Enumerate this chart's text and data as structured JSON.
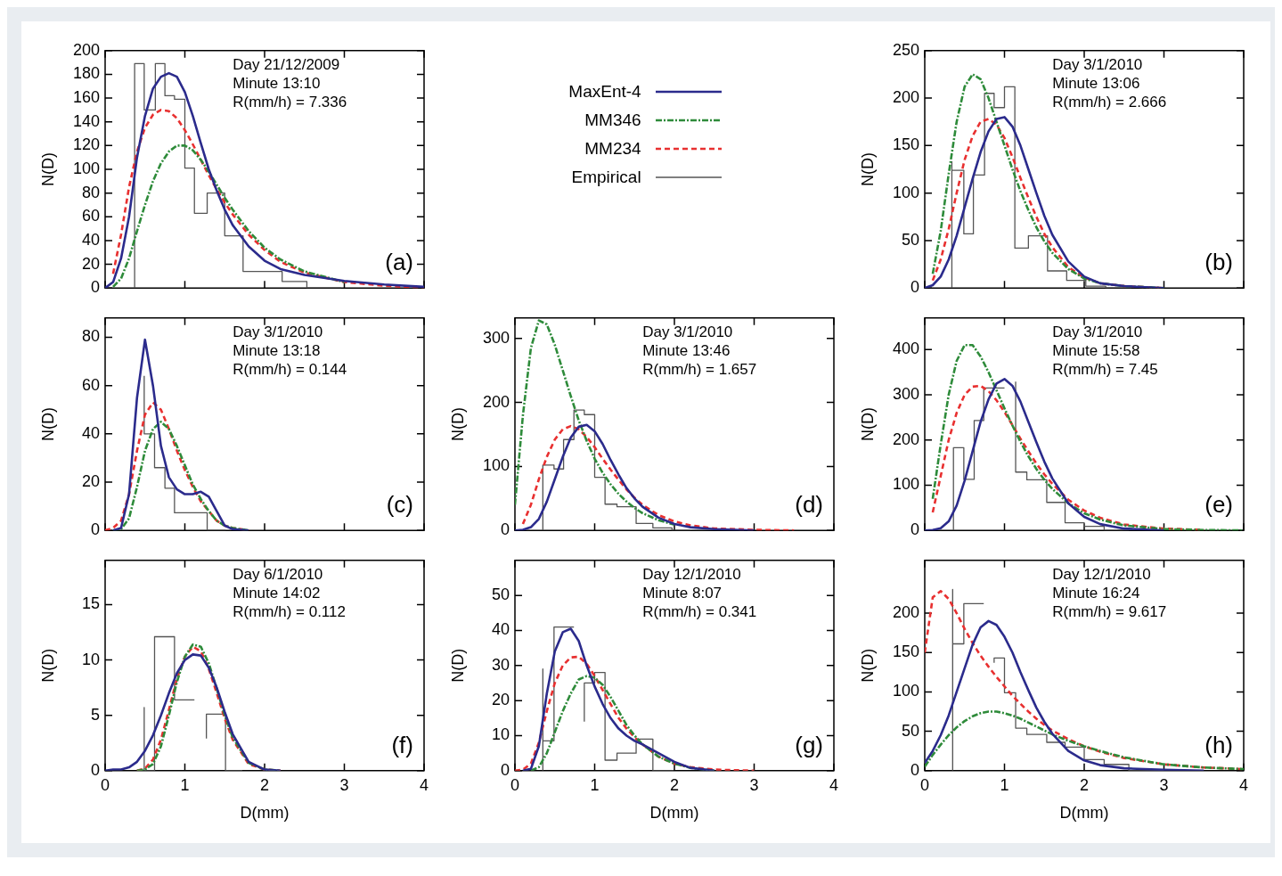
{
  "chart_data": [
    {
      "type": "line",
      "ylabel": "N(D)",
      "xlim": [
        0,
        4
      ],
      "xticks": [
        0,
        1,
        2,
        3,
        4
      ],
      "ylim": [
        0,
        200
      ],
      "yticks": [
        0,
        20,
        40,
        60,
        80,
        100,
        120,
        140,
        160,
        180,
        200
      ],
      "tick_labels": "y",
      "legend": "right",
      "annotations": [
        "Day 21/12/2009",
        "Minute 13:10",
        "R(mm/h) = 7.336",
        "(a)"
      ],
      "x": [
        0,
        0.1,
        0.2,
        0.3,
        0.4,
        0.5,
        0.6,
        0.7,
        0.8,
        0.9,
        1,
        1.1,
        1.2,
        1.3,
        1.4,
        1.5,
        1.6,
        1.8,
        2,
        2.2,
        2.5,
        3,
        3.5,
        4
      ],
      "series": [
        {
          "name": "MaxEnt-4",
          "color": "#2b2b8c",
          "line_style": "solid",
          "values": [
            0,
            5,
            25,
            60,
            110,
            145,
            168,
            178,
            181,
            178,
            165,
            145,
            122,
            100,
            82,
            66,
            53,
            35,
            23,
            16,
            11,
            6,
            3,
            1
          ]
        },
        {
          "name": "MM346",
          "color": "#2e8b3a",
          "line_style": "dashdot",
          "values": [
            null,
            1,
            8,
            25,
            48,
            70,
            90,
            105,
            115,
            120,
            120,
            116,
            108,
            98,
            87,
            76,
            66,
            48,
            34,
            24,
            14,
            5,
            null,
            null
          ]
        },
        {
          "name": "MM234",
          "color": "#e83030",
          "line_style": "dashed",
          "values": [
            null,
            12,
            45,
            85,
            115,
            135,
            146,
            150,
            149,
            143,
            133,
            121,
            108,
            95,
            83,
            72,
            62,
            45,
            32,
            22,
            13,
            5,
            2,
            0
          ]
        },
        {
          "name": "Empirical",
          "color": "#555555",
          "type": "step",
          "line_style": "solid",
          "x": [
            0.37,
            0.37,
            0.49,
            0.63,
            0.75,
            0.87,
            1,
            1.12,
            1.28,
            1.5,
            1.73,
            2.22,
            2.53,
            2.96
          ],
          "values": [
            0,
            137,
            189,
            150,
            189,
            162,
            159,
            101,
            63,
            80,
            44,
            14,
            5.5,
            0
          ]
        }
      ]
    },
    {
      "type": "line",
      "ylabel": "N(D)",
      "xlim": [
        0,
        4
      ],
      "xticks": [
        0,
        1,
        2,
        3,
        4
      ],
      "ylim": [
        0,
        250
      ],
      "yticks": [
        0,
        50,
        100,
        150,
        200,
        250
      ],
      "tick_labels": "y",
      "annotations": [
        "Day 3/1/2010",
        "Minute 13:06",
        "R(mm/h) = 2.666",
        "(b)"
      ],
      "x": [
        0,
        0.1,
        0.2,
        0.3,
        0.4,
        0.5,
        0.6,
        0.7,
        0.8,
        0.9,
        1,
        1.1,
        1.2,
        1.3,
        1.4,
        1.5,
        1.6,
        1.8,
        2,
        2.2,
        2.5,
        3
      ],
      "series": [
        {
          "color": "#2b2b8c",
          "line_style": "solid",
          "values": [
            0,
            3,
            12,
            30,
            55,
            85,
            115,
            143,
            165,
            178,
            180,
            170,
            150,
            125,
            100,
            76,
            56,
            28,
            12,
            5,
            2,
            0
          ]
        },
        {
          "color": "#2e8b3a",
          "line_style": "dashdot",
          "values": [
            null,
            15,
            60,
            120,
            175,
            212,
            225,
            220,
            200,
            175,
            150,
            125,
            102,
            82,
            64,
            49,
            37,
            20,
            10,
            5,
            2,
            0
          ]
        },
        {
          "color": "#e83030",
          "line_style": "dashed",
          "values": [
            null,
            8,
            30,
            62,
            100,
            135,
            160,
            175,
            178,
            172,
            158,
            138,
            116,
            95,
            75,
            57,
            43,
            22,
            11,
            5,
            2,
            0
          ]
        },
        {
          "color": "#555555",
          "type": "step",
          "line_style": "solid",
          "x": [
            0.34,
            0.34,
            0.49,
            0.61,
            0.75,
            0.87,
            1,
            1.13,
            1.3,
            1.54,
            1.78,
            2.02,
            2.27,
            2.59
          ],
          "values": [
            0,
            133,
            124,
            57,
            119,
            205,
            190,
            212,
            42,
            55,
            18,
            8,
            2,
            0
          ]
        }
      ]
    },
    {
      "type": "line",
      "ylabel": "N(D)",
      "xlim": [
        0,
        4
      ],
      "xticks": [
        0,
        1,
        2,
        3,
        4
      ],
      "ylim": [
        0,
        88
      ],
      "yticks": [
        0,
        20,
        40,
        60,
        80
      ],
      "tick_labels": "y",
      "annotations": [
        "Day 3/1/2010",
        "Minute 13:18",
        "R(mm/h) = 0.144",
        "(c)"
      ],
      "x": [
        0,
        0.1,
        0.2,
        0.3,
        0.4,
        0.5,
        0.6,
        0.7,
        0.8,
        0.9,
        1,
        1.1,
        1.2,
        1.3,
        1.4,
        1.5,
        1.6,
        1.8
      ],
      "series": [
        {
          "color": "#2b2b8c",
          "line_style": "solid",
          "values": [
            null,
            0,
            1,
            15,
            55,
            79,
            60,
            35,
            22,
            17,
            15,
            15,
            16,
            14,
            8,
            2,
            0.5,
            0
          ]
        },
        {
          "color": "#2e8b3a",
          "line_style": "dashdot",
          "values": [
            null,
            0,
            0.5,
            5,
            18,
            33,
            42,
            45,
            42,
            35,
            27,
            19,
            13,
            8,
            4,
            2,
            1,
            0
          ]
        },
        {
          "color": "#e83030",
          "line_style": "dashed",
          "values": [
            0,
            1,
            4,
            15,
            33,
            48,
            53,
            50,
            42,
            33,
            25,
            18,
            12,
            8,
            4,
            2,
            1,
            0
          ]
        },
        {
          "color": "#555555",
          "type": "step",
          "line_style": "solid",
          "x": [
            0.49,
            0.62,
            0.75,
            0.87,
            1.28,
            1.51
          ],
          "values": [
            64,
            40,
            26,
            17.5,
            7.3,
            0
          ]
        }
      ]
    },
    {
      "type": "line",
      "ylabel": "N(D)",
      "xlim": [
        0,
        4
      ],
      "xticks": [
        0,
        1,
        2,
        3,
        4
      ],
      "ylim": [
        0,
        332
      ],
      "yticks": [
        0,
        100,
        200,
        300
      ],
      "tick_labels": "y",
      "annotations": [
        "Day 3/1/2010",
        "Minute 13:46",
        "R(mm/h) = 1.657",
        "(d)"
      ],
      "x": [
        0,
        0.1,
        0.2,
        0.3,
        0.4,
        0.5,
        0.6,
        0.7,
        0.8,
        0.9,
        1,
        1.1,
        1.2,
        1.3,
        1.4,
        1.5,
        1.6,
        1.8,
        2,
        2.2,
        2.5,
        3,
        3.5
      ],
      "series": [
        {
          "color": "#2b2b8c",
          "line_style": "solid",
          "values": [
            0,
            1,
            5,
            18,
            45,
            80,
            115,
            145,
            162,
            165,
            155,
            135,
            110,
            87,
            66,
            50,
            37,
            20,
            10,
            5,
            2,
            0,
            null
          ]
        },
        {
          "color": "#2e8b3a",
          "line_style": "dashdot",
          "values": [
            40,
            180,
            285,
            328,
            322,
            290,
            250,
            210,
            172,
            140,
            112,
            90,
            72,
            57,
            45,
            35,
            27,
            16,
            9,
            null,
            null,
            null,
            null
          ]
        },
        {
          "color": "#e83030",
          "line_style": "dashed",
          "values": [
            null,
            10,
            40,
            80,
            115,
            142,
            158,
            163,
            158,
            146,
            130,
            112,
            95,
            79,
            64,
            51,
            40,
            24,
            14,
            8,
            3,
            1,
            0
          ]
        },
        {
          "color": "#555555",
          "type": "step",
          "line_style": "solid",
          "x": [
            0.35,
            0.35,
            0.49,
            0.61,
            0.74,
            0.87,
            1,
            1.13,
            1.28,
            1.52,
            1.73,
            1.97,
            2.2
          ],
          "values": [
            0,
            69,
            102,
            96,
            142,
            188,
            181,
            83,
            41,
            37,
            11,
            4,
            0
          ]
        }
      ]
    },
    {
      "type": "line",
      "ylabel": "N(D)",
      "xlim": [
        0,
        4
      ],
      "xticks": [
        0,
        1,
        2,
        3,
        4
      ],
      "ylim": [
        0,
        470
      ],
      "yticks": [
        0,
        100,
        200,
        300,
        400
      ],
      "tick_labels": "y",
      "annotations": [
        "Day 3/1/2010",
        "Minute 15:58",
        "R(mm/h) = 7.45",
        "(e)"
      ],
      "x": [
        0,
        0.1,
        0.2,
        0.3,
        0.4,
        0.5,
        0.6,
        0.7,
        0.8,
        0.9,
        1,
        1.1,
        1.2,
        1.3,
        1.4,
        1.5,
        1.6,
        1.8,
        2,
        2.2,
        2.5,
        3,
        3.5,
        4
      ],
      "series": [
        {
          "color": "#2b2b8c",
          "line_style": "solid",
          "values": [
            0,
            1,
            5,
            20,
            55,
            110,
            175,
            240,
            290,
            325,
            335,
            320,
            285,
            240,
            195,
            152,
            115,
            60,
            30,
            14,
            4,
            0,
            null,
            null
          ]
        },
        {
          "color": "#2e8b3a",
          "line_style": "dashdot",
          "values": [
            null,
            70,
            190,
            300,
            375,
            410,
            410,
            385,
            350,
            310,
            270,
            232,
            196,
            164,
            136,
            112,
            92,
            60,
            38,
            24,
            11,
            3,
            1,
            0
          ]
        },
        {
          "color": "#e83030",
          "line_style": "dashed",
          "values": [
            null,
            40,
            120,
            200,
            260,
            300,
            318,
            320,
            308,
            288,
            262,
            233,
            203,
            175,
            148,
            124,
            103,
            68,
            44,
            28,
            13,
            4,
            1,
            null
          ]
        },
        {
          "color": "#555555",
          "type": "step",
          "line_style": "solid",
          "x": [
            0.36,
            0.36,
            0.49,
            0.62,
            0.74,
            0.87,
            1
          ],
          "values": [
            0,
            117,
            183,
            113,
            243,
            315,
            315
          ]
        },
        {
          "color": "#555555",
          "type": "step",
          "line_style": "solid",
          "x": [
            1.14,
            1.28,
            1.53,
            1.76,
            2,
            2.25,
            2.56
          ],
          "values": [
            329,
            129,
            112,
            62,
            17,
            9,
            0
          ]
        }
      ]
    },
    {
      "type": "line",
      "xlabel": "D(mm)",
      "ylabel": "N(D)",
      "xlim": [
        0,
        4
      ],
      "xticks": [
        0,
        1,
        2,
        3,
        4
      ],
      "ylim": [
        0,
        19
      ],
      "yticks": [
        0,
        5,
        10,
        15
      ],
      "annotations": [
        "Day 6/1/2010",
        "Minute 14:02",
        "R(mm/h) = 0.112",
        "(f)"
      ],
      "x": [
        0,
        0.1,
        0.2,
        0.3,
        0.4,
        0.5,
        0.6,
        0.7,
        0.8,
        0.9,
        1,
        1.1,
        1.2,
        1.3,
        1.4,
        1.5,
        1.6,
        1.8,
        2,
        2.2
      ],
      "series": [
        {
          "color": "#2b2b8c",
          "line_style": "solid",
          "values": [
            0,
            0.1,
            0.1,
            0.3,
            0.8,
            1.8,
            3.2,
            5,
            7,
            8.8,
            10,
            10.5,
            10.4,
            9.3,
            7.5,
            5.3,
            3.3,
            0.8,
            0.1,
            0
          ]
        },
        {
          "color": "#2e8b3a",
          "line_style": "dashdot",
          "values": [
            null,
            null,
            null,
            null,
            0,
            0.1,
            0.6,
            2.2,
            5,
            8,
            10.3,
            11.4,
            11.2,
            9.7,
            7.4,
            5,
            3,
            0.7,
            0.1,
            0
          ]
        },
        {
          "color": "#e83030",
          "line_style": "dashed",
          "values": [
            null,
            null,
            null,
            null,
            0,
            0.2,
            1,
            2.8,
            5.5,
            8.3,
            10.3,
            11.2,
            10.8,
            9.2,
            7,
            4.7,
            2.8,
            0.6,
            0.1,
            0
          ]
        },
        {
          "color": "#555555",
          "type": "step",
          "line_style": "solid",
          "x": [
            0.49,
            0.49,
            0.62,
            0.87,
            1,
            1.12
          ],
          "values": [
            0,
            5.7,
            0,
            12.1,
            6.4,
            6.4
          ]
        },
        {
          "color": "#555555",
          "type": "step",
          "line_style": "solid",
          "x": [
            1.27,
            1.51,
            1.72
          ],
          "values": [
            2.9,
            5.1,
            0
          ]
        }
      ]
    },
    {
      "type": "line",
      "xlabel": "D(mm)",
      "ylabel": "N(D)",
      "xlim": [
        0,
        4
      ],
      "xticks": [
        0,
        1,
        2,
        3,
        4
      ],
      "ylim": [
        0,
        60
      ],
      "yticks": [
        0,
        10,
        20,
        30,
        40,
        50
      ],
      "annotations": [
        "Day 12/1/2010",
        "Minute 8:07",
        "R(mm/h) = 0.341",
        "(g)"
      ],
      "x": [
        0,
        0.1,
        0.2,
        0.3,
        0.4,
        0.5,
        0.6,
        0.7,
        0.8,
        0.9,
        1,
        1.1,
        1.2,
        1.3,
        1.4,
        1.5,
        1.6,
        1.8,
        2,
        2.2,
        2.5,
        3
      ],
      "series": [
        {
          "color": "#2b2b8c",
          "line_style": "solid",
          "values": [
            null,
            0,
            0.5,
            7,
            22,
            34,
            39.5,
            40.5,
            37,
            30,
            24,
            19,
            15,
            12,
            10,
            8.5,
            7.5,
            5,
            2.5,
            0.8,
            0,
            null
          ]
        },
        {
          "color": "#2e8b3a",
          "line_style": "dashdot",
          "values": [
            null,
            null,
            0,
            1,
            5,
            11,
            17,
            22,
            26,
            27,
            26.5,
            24.5,
            21,
            17,
            13,
            10,
            7.5,
            4,
            2,
            0.8,
            0,
            null
          ]
        },
        {
          "color": "#e83030",
          "line_style": "dashed",
          "values": [
            0,
            0.3,
            2,
            8,
            17,
            25,
            30,
            32.3,
            32.5,
            30.5,
            27,
            23,
            19,
            15,
            12,
            9.5,
            7.5,
            4,
            2,
            1,
            0.3,
            0
          ]
        },
        {
          "color": "#555555",
          "type": "step",
          "line_style": "solid",
          "x": [
            0.35,
            0.35,
            0.49,
            0.61,
            0.74
          ],
          "values": [
            0,
            29,
            8.5,
            41,
            41
          ]
        },
        {
          "color": "#555555",
          "type": "step",
          "line_style": "solid",
          "x": [
            0.87,
            1,
            1.13,
            1.28,
            1.52,
            1.73,
            1.99
          ],
          "values": [
            14,
            25,
            28,
            3,
            5,
            9,
            0
          ]
        }
      ]
    },
    {
      "type": "line",
      "xlabel": "D(mm)",
      "ylabel": "N(D)",
      "xlim": [
        0,
        4
      ],
      "xticks": [
        0,
        1,
        2,
        3,
        4
      ],
      "ylim": [
        0,
        267
      ],
      "yticks": [
        0,
        50,
        100,
        150,
        200
      ],
      "annotations": [
        "Day 12/1/2010",
        "Minute 16:24",
        "R(mm/h) = 9.617",
        "(h)"
      ],
      "x": [
        0,
        0.1,
        0.2,
        0.3,
        0.4,
        0.5,
        0.6,
        0.7,
        0.8,
        0.9,
        1,
        1.1,
        1.2,
        1.3,
        1.4,
        1.5,
        1.6,
        1.8,
        2,
        2.2,
        2.5,
        3,
        3.5,
        4
      ],
      "series": [
        {
          "color": "#2b2b8c",
          "line_style": "solid",
          "values": [
            10,
            25,
            45,
            70,
            100,
            130,
            160,
            182,
            190,
            185,
            170,
            150,
            125,
            102,
            80,
            62,
            47,
            25,
            13,
            7,
            3,
            1,
            0,
            null
          ]
        },
        {
          "color": "#2e8b3a",
          "line_style": "dashdot",
          "values": [
            5,
            20,
            33,
            45,
            55,
            63,
            69,
            73,
            75,
            75,
            73,
            70,
            66,
            61,
            56,
            51,
            46,
            38,
            31,
            25,
            17,
            8,
            4,
            2
          ]
        },
        {
          "color": "#e83030",
          "line_style": "dashed",
          "values": [
            150,
            220,
            228,
            218,
            200,
            180,
            162,
            146,
            132,
            119,
            107,
            95,
            85,
            75,
            66,
            58,
            51,
            40,
            31,
            24,
            16,
            8,
            4,
            2
          ]
        },
        {
          "color": "#555555",
          "type": "step",
          "line_style": "solid",
          "x": [
            0.35,
            0.35,
            0.49,
            0.62,
            0.74
          ],
          "values": [
            0,
            230,
            161,
            212,
            212
          ]
        },
        {
          "color": "#555555",
          "type": "step",
          "line_style": "solid",
          "x": [
            0.87,
            1,
            1.14,
            1.28,
            1.53,
            1.76,
            2,
            2.25,
            2.56,
            3
          ],
          "values": [
            137,
            143,
            99,
            54,
            46,
            36,
            30,
            14,
            8,
            0
          ]
        }
      ]
    }
  ]
}
